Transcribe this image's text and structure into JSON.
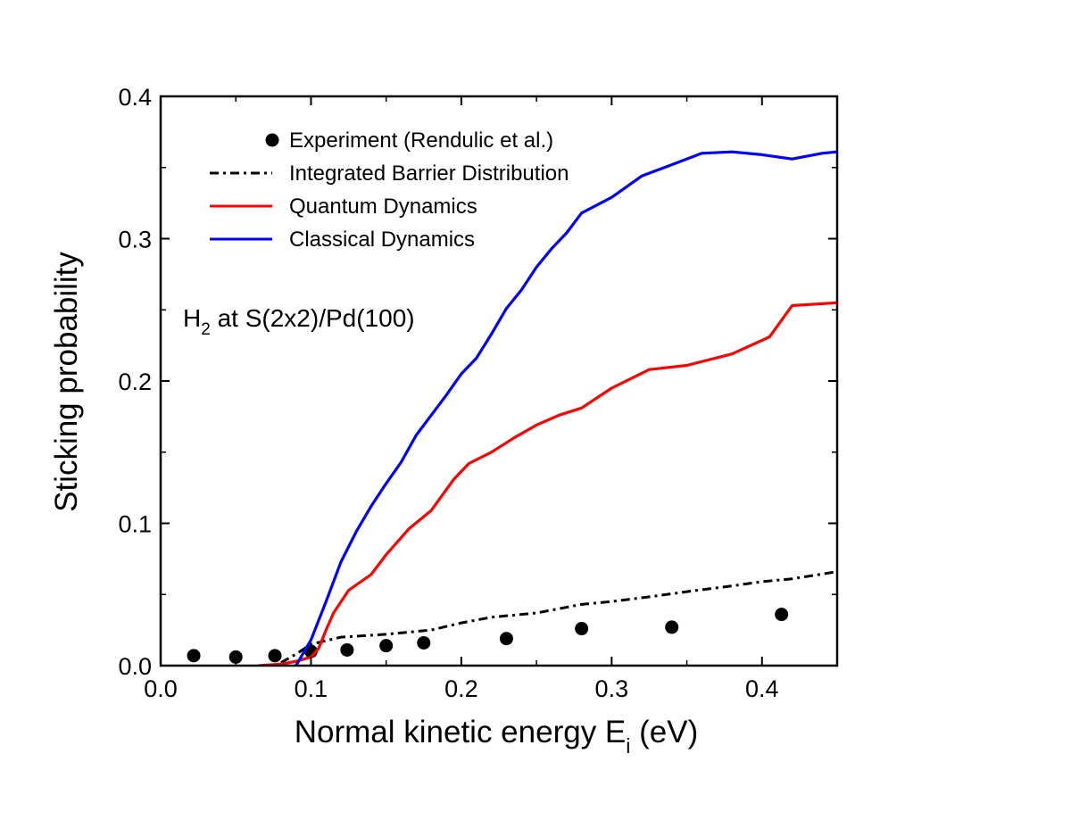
{
  "chart_data": {
    "type": "line",
    "title": "",
    "annotation": {
      "main": "H",
      "sub": "2",
      "rest": " at S(2x2)/Pd(100)"
    },
    "xlabel": {
      "main": "Normal kinetic energy E",
      "sub": "i",
      "rest": " (eV)"
    },
    "ylabel": "Sticking probability",
    "xlim": [
      0.0,
      0.45
    ],
    "ylim": [
      0.0,
      0.4
    ],
    "xticks": [
      {
        "value": 0.0,
        "label": "0.0"
      },
      {
        "value": 0.1,
        "label": "0.1"
      },
      {
        "value": 0.2,
        "label": "0.2"
      },
      {
        "value": 0.3,
        "label": "0.3"
      },
      {
        "value": 0.4,
        "label": "0.4"
      }
    ],
    "yticks": [
      {
        "value": 0.0,
        "label": "0.0"
      },
      {
        "value": 0.1,
        "label": "0.1"
      },
      {
        "value": 0.2,
        "label": "0.2"
      },
      {
        "value": 0.3,
        "label": "0.3"
      },
      {
        "value": 0.4,
        "label": "0.4"
      }
    ],
    "grid": false,
    "legend_position": "top-left",
    "series": [
      {
        "name": "Experiment (Rendulic et al.)",
        "kind": "points",
        "color": "#000000",
        "x": [
          0.022,
          0.05,
          0.076,
          0.1,
          0.124,
          0.15,
          0.175,
          0.23,
          0.28,
          0.34,
          0.413
        ],
        "y": [
          0.007,
          0.006,
          0.007,
          0.01,
          0.011,
          0.014,
          0.016,
          0.019,
          0.026,
          0.027,
          0.036
        ]
      },
      {
        "name": "Integrated Barrier Distribution",
        "kind": "dashdot",
        "color": "#000000",
        "x": [
          0.08,
          0.09,
          0.1,
          0.12,
          0.15,
          0.18,
          0.2,
          0.22,
          0.25,
          0.28,
          0.3,
          0.33,
          0.35,
          0.38,
          0.4,
          0.42,
          0.45
        ],
        "y": [
          0.002,
          0.008,
          0.015,
          0.02,
          0.022,
          0.025,
          0.03,
          0.034,
          0.037,
          0.043,
          0.045,
          0.049,
          0.052,
          0.056,
          0.059,
          0.061,
          0.066
        ]
      },
      {
        "name": "Quantum Dynamics",
        "kind": "line",
        "color": "#ff0000",
        "x": [
          0.065,
          0.08,
          0.09,
          0.1,
          0.105,
          0.11,
          0.115,
          0.125,
          0.14,
          0.15,
          0.165,
          0.18,
          0.195,
          0.205,
          0.22,
          0.235,
          0.25,
          0.265,
          0.28,
          0.3,
          0.325,
          0.35,
          0.38,
          0.405,
          0.42,
          0.45
        ],
        "y": [
          0.0,
          0.001,
          0.003,
          0.006,
          0.012,
          0.025,
          0.037,
          0.053,
          0.064,
          0.078,
          0.096,
          0.109,
          0.131,
          0.142,
          0.15,
          0.16,
          0.169,
          0.176,
          0.181,
          0.195,
          0.208,
          0.211,
          0.219,
          0.231,
          0.253,
          0.255
        ]
      },
      {
        "name": "Classical Dynamics",
        "kind": "line",
        "color": "#0000ff",
        "x": [
          0.09,
          0.1,
          0.11,
          0.12,
          0.13,
          0.14,
          0.15,
          0.16,
          0.17,
          0.18,
          0.19,
          0.2,
          0.21,
          0.22,
          0.23,
          0.24,
          0.25,
          0.26,
          0.27,
          0.28,
          0.3,
          0.32,
          0.34,
          0.36,
          0.38,
          0.4,
          0.42,
          0.44,
          0.45
        ],
        "y": [
          0.0,
          0.018,
          0.045,
          0.073,
          0.094,
          0.112,
          0.128,
          0.143,
          0.162,
          0.176,
          0.19,
          0.205,
          0.216,
          0.233,
          0.251,
          0.264,
          0.28,
          0.293,
          0.304,
          0.318,
          0.329,
          0.344,
          0.352,
          0.36,
          0.361,
          0.359,
          0.356,
          0.36,
          0.361
        ]
      }
    ]
  }
}
